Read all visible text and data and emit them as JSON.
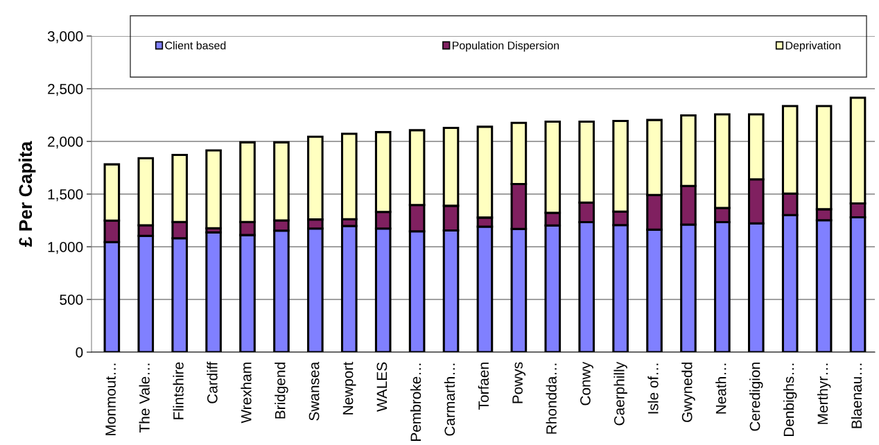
{
  "chart_data": {
    "type": "bar",
    "stacked": true,
    "ylabel": "£ Per Capita",
    "categories": [
      "Monmout…",
      "The Vale…",
      "Flintshire",
      "Cardiff",
      "Wrexham",
      "Bridgend",
      "Swansea",
      "Newport",
      "WALES",
      "Pembroke…",
      "Carmarth…",
      "Torfaen",
      "Powys",
      "Rhondda…",
      "Conwy",
      "Caerphilly",
      "Isle of…",
      "Gwynedd",
      "Neath…",
      "Ceredigion",
      "Denbighs…",
      "Merthyr…",
      "Blaenau…"
    ],
    "series": [
      {
        "name": "Client based",
        "color": "#8080ff",
        "values": [
          1045,
          1103,
          1080,
          1136,
          1111,
          1153,
          1173,
          1197,
          1173,
          1147,
          1155,
          1191,
          1169,
          1202,
          1233,
          1206,
          1162,
          1211,
          1233,
          1222,
          1301,
          1252,
          1279
        ]
      },
      {
        "name": "Population Dispersion",
        "color": "#802060",
        "values": [
          203,
          101,
          155,
          39,
          124,
          97,
          86,
          64,
          157,
          249,
          234,
          86,
          427,
          121,
          187,
          128,
          329,
          366,
          136,
          418,
          203,
          104,
          132
        ]
      },
      {
        "name": "Deprivation",
        "color": "#ffffc0",
        "values": [
          534,
          637,
          637,
          739,
          756,
          741,
          785,
          812,
          758,
          710,
          739,
          862,
          580,
          864,
          767,
          860,
          712,
          670,
          887,
          616,
          831,
          979,
          1003
        ]
      }
    ],
    "ylim": [
      0,
      3000
    ],
    "yticks": [
      {
        "value": 0,
        "label": "0"
      },
      {
        "value": 500,
        "label": "500"
      },
      {
        "value": 1000,
        "label": "1,000"
      },
      {
        "value": 1500,
        "label": "1,500"
      },
      {
        "value": 2000,
        "label": "2,000"
      },
      {
        "value": 2500,
        "label": "2,500"
      },
      {
        "value": 3000,
        "label": "3,000"
      }
    ],
    "grid": "y",
    "legend": "top"
  }
}
